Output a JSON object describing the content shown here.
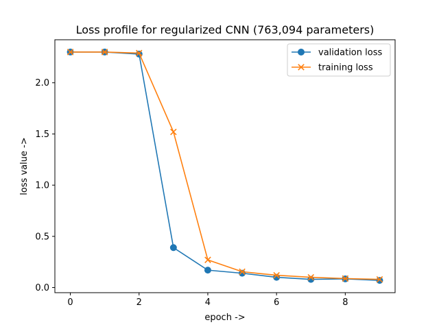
{
  "chart_data": {
    "type": "line",
    "title": "Loss profile for regularized CNN (763,094 parameters)",
    "xlabel": "epoch ->",
    "ylabel": "loss value ->",
    "xlim": [
      -0.45,
      9.45
    ],
    "ylim": [
      -0.05,
      2.42
    ],
    "xticks": [
      0,
      2,
      4,
      6,
      8
    ],
    "yticks": [
      0.0,
      0.5,
      1.0,
      1.5,
      2.0
    ],
    "xtick_labels": [
      "0",
      "2",
      "4",
      "6",
      "8"
    ],
    "ytick_labels": [
      "0.0",
      "0.5",
      "1.0",
      "1.5",
      "2.0"
    ],
    "grid": false,
    "legend_position": "top-right",
    "x": [
      0,
      1,
      2,
      3,
      4,
      5,
      6,
      7,
      8,
      9
    ],
    "series": [
      {
        "name": "validation loss",
        "color": "#1f77b4",
        "marker": "circle",
        "values": [
          2.3,
          2.3,
          2.28,
          0.39,
          0.17,
          0.14,
          0.1,
          0.08,
          0.085,
          0.07
        ]
      },
      {
        "name": "training loss",
        "color": "#ff7f0e",
        "marker": "x",
        "values": [
          2.3,
          2.3,
          2.29,
          1.52,
          0.27,
          0.155,
          0.12,
          0.1,
          0.088,
          0.08
        ]
      }
    ]
  }
}
